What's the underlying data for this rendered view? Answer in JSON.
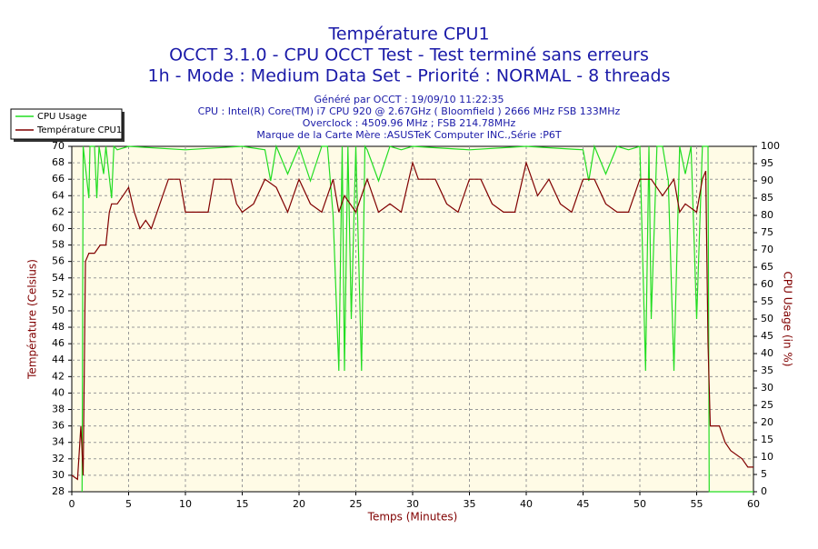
{
  "chart_data": {
    "type": "line",
    "title": "Température CPU1",
    "subtitle": [
      "OCCT 3.1.0 - CPU OCCT Test - Test terminé sans erreurs",
      "1h - Mode : Medium Data Set - Priorité : NORMAL - 8 threads"
    ],
    "info": [
      "Généré par OCCT : 19/09/10 11:22:35",
      "CPU : Intel(R) Core(TM) i7 CPU 920 @ 2.67GHz ( Bloomfield ) 2666 MHz FSB 133MHz",
      "Overclock : 4509.96 MHz ; FSB 214.78MHz",
      "Marque de la Carte Mère :ASUSTeK Computer INC.,Série :P6T"
    ],
    "xlabel": "Temps (Minutes)",
    "ylabel": "Température (Celsius)",
    "y2label": "CPU Usage (in %)",
    "xlim": [
      0,
      60
    ],
    "xticks": [
      0,
      5,
      10,
      15,
      20,
      25,
      30,
      35,
      40,
      45,
      50,
      55,
      60
    ],
    "ylim": [
      28,
      70
    ],
    "yticks": [
      28,
      30,
      32,
      34,
      36,
      38,
      40,
      42,
      44,
      46,
      48,
      50,
      52,
      54,
      56,
      58,
      60,
      62,
      64,
      66,
      68,
      70
    ],
    "y2lim": [
      0,
      100
    ],
    "y2ticks": [
      0,
      5,
      10,
      15,
      20,
      25,
      30,
      35,
      40,
      45,
      50,
      55,
      60,
      65,
      70,
      75,
      80,
      85,
      90,
      95,
      100
    ],
    "grid": true,
    "legend": "top-left",
    "series": [
      {
        "name": "CPU Usage",
        "color": "#22dd22",
        "axis": "y2",
        "x": [
          0.9,
          1,
          1.5,
          1.6,
          2,
          2.2,
          2.4,
          2.8,
          3,
          3.5,
          3.7,
          4,
          5,
          10,
          15,
          17,
          17.5,
          18,
          19,
          20,
          21,
          22,
          22.5,
          23,
          23.5,
          23.8,
          24,
          24.3,
          24.6,
          25,
          25.5,
          25.8,
          26,
          27,
          28,
          29,
          30,
          35,
          40,
          45,
          45.5,
          46,
          47,
          48,
          49,
          50,
          50.5,
          50.8,
          51,
          51.5,
          52,
          52.5,
          53,
          53.5,
          54,
          54.5,
          55,
          55.5,
          56,
          56.1,
          60
        ],
        "values": [
          0,
          100,
          85,
          100,
          100,
          85,
          100,
          92,
          100,
          85,
          100,
          99,
          100,
          99,
          100,
          99,
          90,
          100,
          92,
          100,
          90,
          100,
          100,
          80,
          35,
          100,
          35,
          100,
          50,
          100,
          35,
          100,
          99,
          90,
          100,
          99,
          100,
          99,
          100,
          99,
          90,
          100,
          92,
          100,
          99,
          100,
          35,
          100,
          50,
          100,
          100,
          90,
          35,
          100,
          92,
          100,
          50,
          100,
          100,
          0,
          0
        ]
      },
      {
        "name": "Température CPU1",
        "color": "#800000",
        "x": [
          0,
          0.5,
          0.8,
          1,
          1.2,
          1.5,
          2,
          2.5,
          3,
          3.3,
          3.5,
          4,
          4.5,
          5,
          5.5,
          6,
          6.5,
          7,
          7.5,
          8,
          8.5,
          9,
          9.5,
          10,
          11,
          12,
          12.5,
          13,
          14,
          14.5,
          15,
          16,
          17,
          18,
          19,
          20,
          21,
          22,
          23,
          23.5,
          24,
          25,
          26,
          27,
          28,
          29,
          30,
          30.5,
          31,
          32,
          33,
          34,
          35,
          36,
          37,
          38,
          39,
          40,
          40.5,
          41,
          42,
          43,
          44,
          45,
          46,
          47,
          48,
          49,
          50,
          51,
          52,
          53,
          53.5,
          54,
          55,
          55.5,
          55.8,
          56,
          56.2,
          57,
          57.5,
          58,
          59,
          59.5,
          60
        ],
        "values": [
          30,
          29.5,
          36,
          30,
          56,
          57,
          57,
          58,
          58,
          62,
          63,
          63,
          64,
          65,
          62,
          60,
          61,
          60,
          62,
          64,
          66,
          66,
          66,
          62,
          62,
          62,
          66,
          66,
          66,
          63,
          62,
          63,
          66,
          65,
          62,
          66,
          63,
          62,
          66,
          62,
          64,
          62,
          66,
          62,
          63,
          62,
          68,
          66,
          66,
          66,
          63,
          62,
          66,
          66,
          63,
          62,
          62,
          68,
          66,
          64,
          66,
          63,
          62,
          66,
          66,
          63,
          62,
          62,
          66,
          66,
          64,
          66,
          62,
          63,
          62,
          66,
          67,
          46,
          36,
          36,
          34,
          33,
          32,
          31,
          31
        ]
      }
    ]
  }
}
